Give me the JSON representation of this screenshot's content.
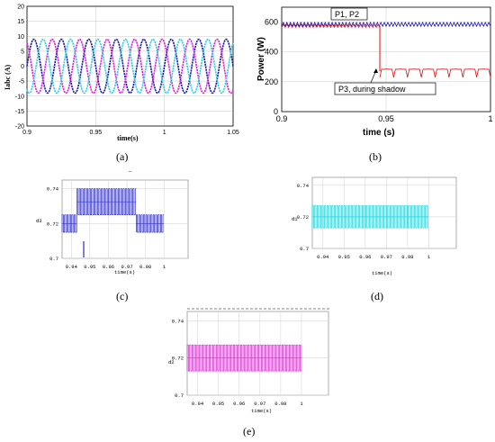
{
  "chart_data": [
    {
      "panel": "a",
      "type": "line",
      "caption": "(a)",
      "xlabel": "time(s)",
      "ylabel": "Iabc (A)",
      "xlim": [
        0.9,
        1.05
      ],
      "ylim": [
        -20,
        20
      ],
      "xticks": [
        "0.9",
        "0.95",
        "1",
        "1.05"
      ],
      "yticks": [
        "20",
        "15",
        "10",
        "5",
        "0",
        "-5",
        "-10",
        "-15",
        "-20"
      ],
      "frequency_hz": 50,
      "series": [
        {
          "amplitude": 9,
          "phase_deg": 0,
          "color": "#1a1aa8"
        },
        {
          "amplitude": 9,
          "phase_deg": 120,
          "color": "#e020e0"
        },
        {
          "amplitude": 9,
          "phase_deg": 240,
          "color": "#30d0e0"
        }
      ],
      "grid": true
    },
    {
      "panel": "b",
      "type": "line",
      "caption": "(b)",
      "xlabel": "time (s)",
      "ylabel": "Power (W)",
      "xlim": [
        0.9,
        1.0
      ],
      "ylim": [
        0,
        700
      ],
      "xticks": [
        "0.9",
        "0.95",
        "1"
      ],
      "yticks": [
        "0",
        "200",
        "400",
        "600"
      ],
      "series": [
        {
          "color": "#1010c0",
          "mean": 585,
          "ripple": 25,
          "t_start": 0.9,
          "t_end": 1.0
        },
        {
          "color": "#e01010",
          "mean": 575,
          "ripple": 20,
          "t_start": 0.9,
          "t_end": 0.947
        },
        {
          "color": "#e01010",
          "mean": 270,
          "ripple": 40,
          "t_start": 0.947,
          "t_end": 1.0
        }
      ],
      "step_time": 0.947,
      "annotations": [
        {
          "text": "P1, P2",
          "x": 0.934,
          "y": 620
        },
        {
          "text": "P3,  during shadow",
          "x": 0.936,
          "y": 110
        }
      ],
      "grid": true
    },
    {
      "panel": "c",
      "type": "line",
      "caption": "(c)",
      "ylabel": "d3",
      "xlabel": "time(s)",
      "xlim": [
        0.93,
        0.99
      ],
      "ylim": [
        0.7,
        0.745
      ],
      "xticks": [
        "0.94",
        "0.95",
        "0.96",
        "0.97",
        "0.98",
        "1"
      ],
      "yticks": [
        "0.74",
        "0.72",
        "0.7"
      ],
      "color": "#2828d0",
      "segments": [
        {
          "t0": 0.93,
          "t1": 0.943,
          "low": 0.715,
          "high": 0.725
        },
        {
          "t0": 0.943,
          "t1": 0.975,
          "low": 0.725,
          "high": 0.74
        },
        {
          "t0": 0.975,
          "t1": 0.99,
          "low": 0.715,
          "high": 0.725
        }
      ],
      "header_mark": "—"
    },
    {
      "panel": "d",
      "type": "line",
      "caption": "(d)",
      "ylabel": "d1",
      "xlabel": "time(s)",
      "xlim": [
        0.93,
        0.99
      ],
      "ylim": [
        0.7,
        0.745
      ],
      "xticks": [
        "0.94",
        "0.95",
        "0.96",
        "0.97",
        "0.98",
        "1"
      ],
      "yticks": [
        "0.74",
        "0.72",
        "0.7"
      ],
      "color": "#10d8e0",
      "segments": [
        {
          "t0": 0.93,
          "t1": 0.99,
          "low": 0.713,
          "high": 0.727
        }
      ]
    },
    {
      "panel": "e",
      "type": "line",
      "caption": "(e)",
      "ylabel": "d2",
      "xlabel": "time(s)",
      "xlim": [
        0.93,
        0.99
      ],
      "ylim": [
        0.7,
        0.745
      ],
      "xticks": [
        "0.94",
        "0.95",
        "0.96",
        "0.97",
        "0.98",
        "1"
      ],
      "yticks": [
        "0.74",
        "0.72",
        "0.7"
      ],
      "color": "#e020d8",
      "segments": [
        {
          "t0": 0.93,
          "t1": 0.99,
          "low": 0.713,
          "high": 0.727
        }
      ]
    }
  ]
}
